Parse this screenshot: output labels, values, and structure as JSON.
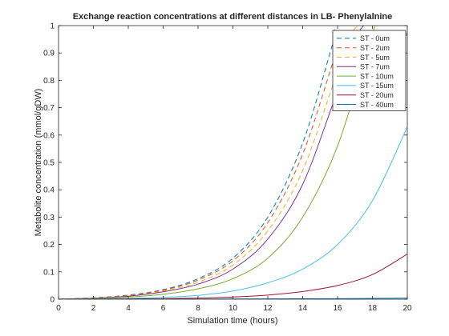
{
  "chart_data": {
    "type": "line",
    "title": "Exchange reaction concentrations at different distances in LB- Phenylalnine",
    "xlabel": "Simulation time (hours)",
    "ylabel": "Metabolite concentration (mmol/gDW)",
    "xlim": [
      0,
      20
    ],
    "ylim": [
      0,
      1
    ],
    "xticks": [
      0,
      2,
      4,
      6,
      8,
      10,
      12,
      14,
      16,
      18,
      20
    ],
    "yticks": [
      0,
      0.1,
      0.2,
      0.3,
      0.4,
      0.5,
      0.6,
      0.7,
      0.8,
      0.9,
      1
    ],
    "xtick_labels": [
      "0",
      "2",
      "4",
      "6",
      "8",
      "10",
      "12",
      "14",
      "16",
      "18",
      "20"
    ],
    "ytick_labels": [
      "0",
      "0.1",
      "0.2",
      "0.3",
      "0.4",
      "0.5",
      "0.6",
      "0.7",
      "0.8",
      "0.9",
      "1"
    ],
    "grid": false,
    "legend_position": "top-right",
    "series": [
      {
        "name": "ST - 0um",
        "color": "#0072BD",
        "dash": "dashed",
        "x": [
          0,
          2,
          4,
          6,
          8,
          10,
          12,
          14,
          15.8,
          16,
          20
        ],
        "y": [
          0,
          0.005,
          0.015,
          0.035,
          0.075,
          0.15,
          0.3,
          0.57,
          0.95,
          0.97,
          0.97
        ]
      },
      {
        "name": "ST - 2um",
        "color": "#D95319",
        "dash": "dashed",
        "x": [
          0,
          2,
          4,
          6,
          8,
          10,
          12,
          14,
          16,
          16.3,
          20
        ],
        "y": [
          0,
          0.005,
          0.014,
          0.033,
          0.07,
          0.14,
          0.28,
          0.53,
          0.92,
          0.965,
          0.965
        ]
      },
      {
        "name": "ST - 5um",
        "color": "#EDB120",
        "dash": "dashed",
        "x": [
          0,
          2,
          4,
          6,
          8,
          10,
          12,
          14,
          16,
          17.2,
          20
        ],
        "y": [
          0,
          0.004,
          0.012,
          0.03,
          0.062,
          0.125,
          0.25,
          0.47,
          0.83,
          1.0,
          1.0
        ]
      },
      {
        "name": "ST - 7um",
        "color": "#7E2F8E",
        "dash": "solid",
        "x": [
          0,
          2,
          4,
          6,
          8,
          10,
          12,
          14,
          16,
          17.5,
          20
        ],
        "y": [
          0,
          0.004,
          0.011,
          0.027,
          0.055,
          0.11,
          0.22,
          0.42,
          0.76,
          1.0,
          1.0
        ]
      },
      {
        "name": "ST - 10um",
        "color": "#77AC30",
        "dash": "solid",
        "x": [
          0,
          2,
          4,
          6,
          8,
          10,
          12,
          14,
          16,
          18,
          18.3,
          20
        ],
        "y": [
          0,
          0.003,
          0.008,
          0.018,
          0.038,
          0.075,
          0.15,
          0.3,
          0.56,
          0.97,
          1.0,
          1.0
        ]
      },
      {
        "name": "ST - 15um",
        "color": "#4DBEEE",
        "dash": "solid",
        "x": [
          0,
          2,
          4,
          6,
          8,
          10,
          12,
          14,
          16,
          18,
          20
        ],
        "y": [
          0,
          0.001,
          0.003,
          0.007,
          0.014,
          0.03,
          0.06,
          0.11,
          0.2,
          0.36,
          0.63
        ]
      },
      {
        "name": "ST - 20um",
        "color": "#A2142F",
        "dash": "solid",
        "x": [
          0,
          2,
          4,
          6,
          8,
          10,
          12,
          14,
          16,
          18,
          20
        ],
        "y": [
          0,
          0.0005,
          0.001,
          0.002,
          0.004,
          0.008,
          0.015,
          0.028,
          0.05,
          0.09,
          0.165
        ]
      },
      {
        "name": "ST - 40um",
        "color": "#0072BD",
        "dash": "solid",
        "x": [
          0,
          4,
          8,
          12,
          16,
          20
        ],
        "y": [
          0,
          0,
          0.0005,
          0.001,
          0.002,
          0.004
        ]
      }
    ]
  }
}
